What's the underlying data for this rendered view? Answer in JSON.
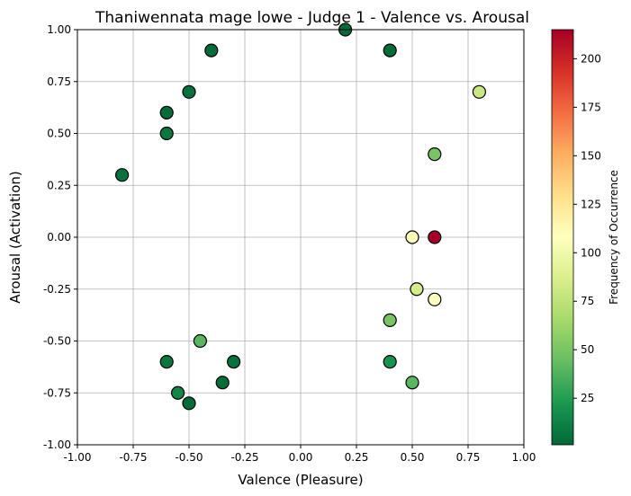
{
  "chart_data": {
    "type": "scatter",
    "title": "Thaniwennata mage lowe - Judge 1 - Valence vs. Arousal",
    "xlabel": "Valence (Pleasure)",
    "ylabel": "Arousal (Activation)",
    "xlim": [
      -1.0,
      1.0
    ],
    "ylim": [
      -1.0,
      1.0
    ],
    "xticks": [
      "-1.00",
      "-0.75",
      "-0.50",
      "-0.25",
      "0.00",
      "0.25",
      "0.50",
      "0.75",
      "1.00"
    ],
    "yticks": [
      "-1.00",
      "-0.75",
      "-0.50",
      "-0.25",
      "0.00",
      "0.25",
      "0.50",
      "0.75",
      "1.00"
    ],
    "grid": true,
    "colormap": "RdYlGn_r",
    "colorbar": {
      "label": "Frequency of Occurrence",
      "range": [
        1,
        215
      ],
      "ticks": [
        "25",
        "50",
        "75",
        "100",
        "125",
        "150",
        "175",
        "200"
      ]
    },
    "points": [
      {
        "x": 0.2,
        "y": 1.0,
        "freq": 3
      },
      {
        "x": 0.4,
        "y": 0.9,
        "freq": 3
      },
      {
        "x": -0.4,
        "y": 0.9,
        "freq": 3
      },
      {
        "x": -0.5,
        "y": 0.7,
        "freq": 5
      },
      {
        "x": -0.6,
        "y": 0.6,
        "freq": 3
      },
      {
        "x": -0.6,
        "y": 0.5,
        "freq": 8
      },
      {
        "x": -0.8,
        "y": 0.3,
        "freq": 6
      },
      {
        "x": 0.8,
        "y": 0.7,
        "freq": 80
      },
      {
        "x": 0.6,
        "y": 0.4,
        "freq": 50
      },
      {
        "x": 0.5,
        "y": 0.0,
        "freq": 105
      },
      {
        "x": 0.6,
        "y": 0.0,
        "freq": 215
      },
      {
        "x": 0.52,
        "y": -0.25,
        "freq": 85
      },
      {
        "x": 0.6,
        "y": -0.3,
        "freq": 108
      },
      {
        "x": 0.4,
        "y": -0.4,
        "freq": 50
      },
      {
        "x": 0.4,
        "y": -0.6,
        "freq": 20
      },
      {
        "x": 0.5,
        "y": -0.7,
        "freq": 40
      },
      {
        "x": -0.45,
        "y": -0.5,
        "freq": 40
      },
      {
        "x": -0.6,
        "y": -0.6,
        "freq": 8
      },
      {
        "x": -0.3,
        "y": -0.6,
        "freq": 5
      },
      {
        "x": -0.55,
        "y": -0.75,
        "freq": 15
      },
      {
        "x": -0.35,
        "y": -0.7,
        "freq": 3
      },
      {
        "x": -0.5,
        "y": -0.8,
        "freq": 3
      }
    ]
  }
}
